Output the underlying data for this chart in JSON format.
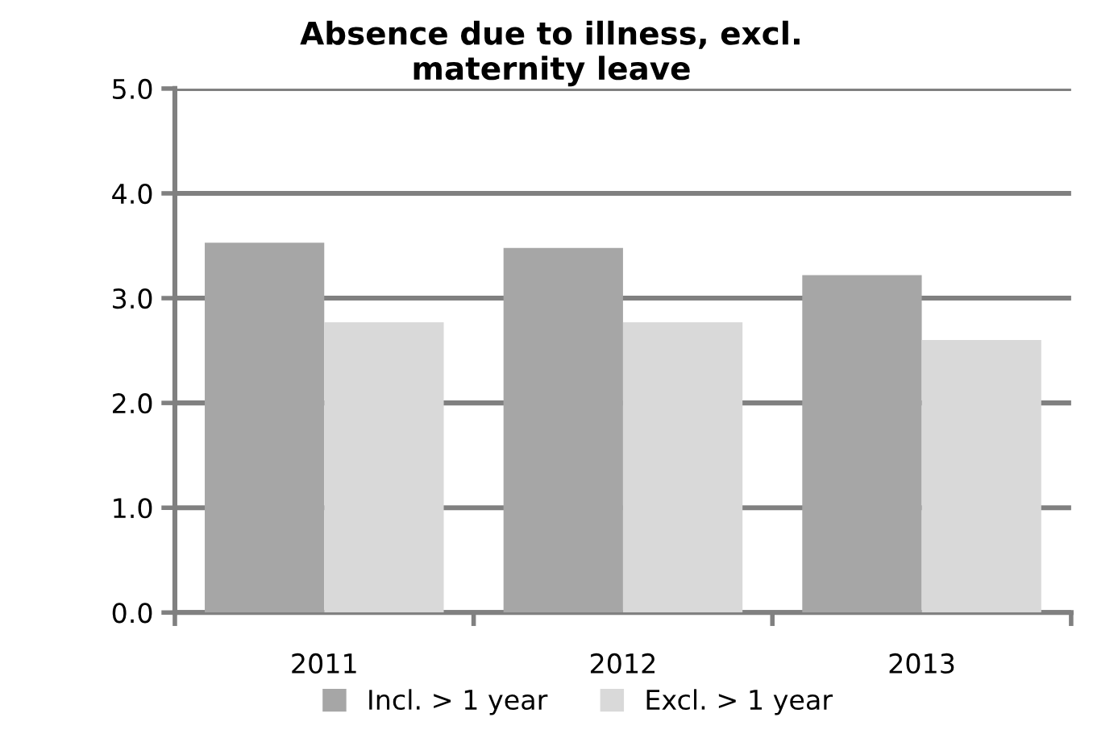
{
  "chart_data": {
    "type": "bar",
    "title": "Absence due to illness, excl.\nmaternity leave",
    "categories": [
      "2011",
      "2012",
      "2013"
    ],
    "series": [
      {
        "name": "Incl. > 1 year",
        "color": "#a6a6a6",
        "values": [
          3.53,
          3.48,
          3.22
        ]
      },
      {
        "name": "Excl. > 1 year",
        "color": "#d9d9d9",
        "values": [
          2.77,
          2.77,
          2.6
        ]
      }
    ],
    "ylim": [
      0,
      5
    ],
    "yticks": [
      {
        "value": 0,
        "label": "0.0"
      },
      {
        "value": 1,
        "label": "1.0"
      },
      {
        "value": 2,
        "label": "2.0"
      },
      {
        "value": 3,
        "label": "3.0"
      },
      {
        "value": 4,
        "label": "4.0"
      },
      {
        "value": 5,
        "label": "5.0"
      }
    ],
    "grid": "y",
    "legend": "bottom"
  }
}
